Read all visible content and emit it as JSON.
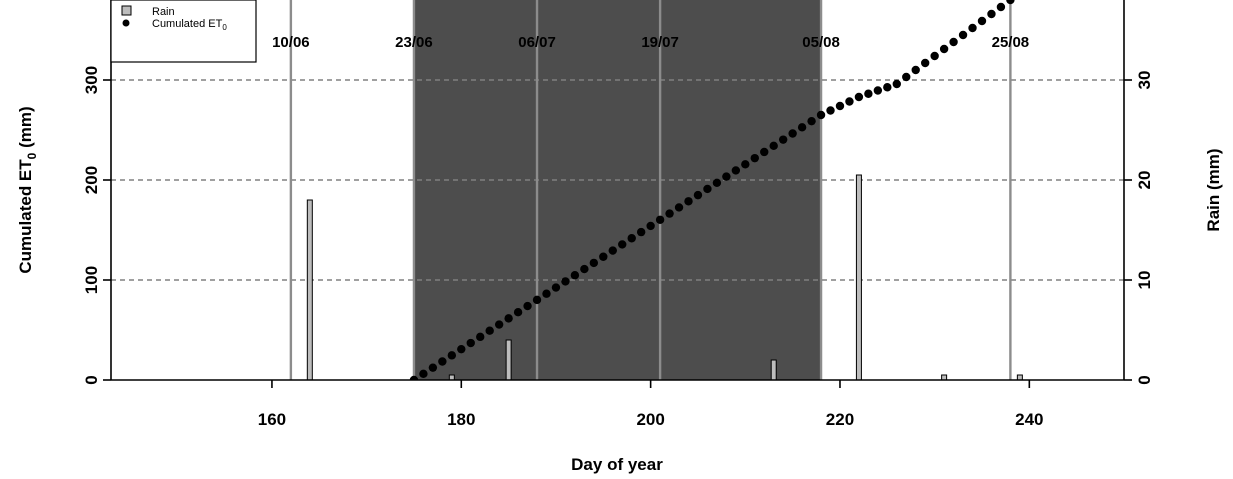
{
  "chart_data": {
    "type": "bar+scatter",
    "xlabel": "Day of year",
    "ylabel_left": "Cumulated ET",
    "ylabel_left_sub": "0",
    "ylabel_left_unit": " (mm)",
    "ylabel_right": "Rain (mm)",
    "xlim": [
      143,
      250
    ],
    "ylim_left": [
      0,
      380
    ],
    "ylim_right": [
      0,
      38
    ],
    "x_ticks": [
      160,
      180,
      200,
      220,
      240
    ],
    "y_left_ticks": [
      0,
      100,
      200,
      300
    ],
    "y_right_ticks": [
      0,
      10,
      20,
      30
    ],
    "grid_y": [
      100,
      200,
      300
    ],
    "shaded_period": [
      175,
      218
    ],
    "date_markers": [
      {
        "day": 162,
        "label": "10/06"
      },
      {
        "day": 175,
        "label": "23/06"
      },
      {
        "day": 188,
        "label": "06/07"
      },
      {
        "day": 201,
        "label": "19/07"
      },
      {
        "day": 218,
        "label": "05/08"
      },
      {
        "day": 238,
        "label": "25/08"
      }
    ],
    "rain_series": {
      "name": "Rain",
      "days": [
        164,
        179,
        185,
        213,
        222,
        231,
        239
      ],
      "values": [
        18,
        0.5,
        4,
        2,
        20.5,
        0.5,
        0.5
      ]
    },
    "et0_series": {
      "name": "Cumulated ET",
      "name_sub": "0",
      "day_start": 175,
      "day_end": 238,
      "knots": [
        [
          175,
          0
        ],
        [
          218,
          265
        ],
        [
          222,
          283
        ],
        [
          226,
          296
        ],
        [
          238,
          380
        ]
      ]
    },
    "legend": {
      "position": "top-left",
      "items": [
        {
          "label": "Rain",
          "label_sub": "",
          "symbol": "square",
          "color": "#bdbdbd"
        },
        {
          "label": "Cumulated ET",
          "label_sub": "0",
          "symbol": "circle",
          "color": "#000000"
        }
      ]
    },
    "colors": {
      "shade": "#4d4d4d",
      "marker_line": "#8c8c8c",
      "grid": "#808080",
      "bar_fill": "#bdbdbd",
      "point": "#000000"
    }
  }
}
